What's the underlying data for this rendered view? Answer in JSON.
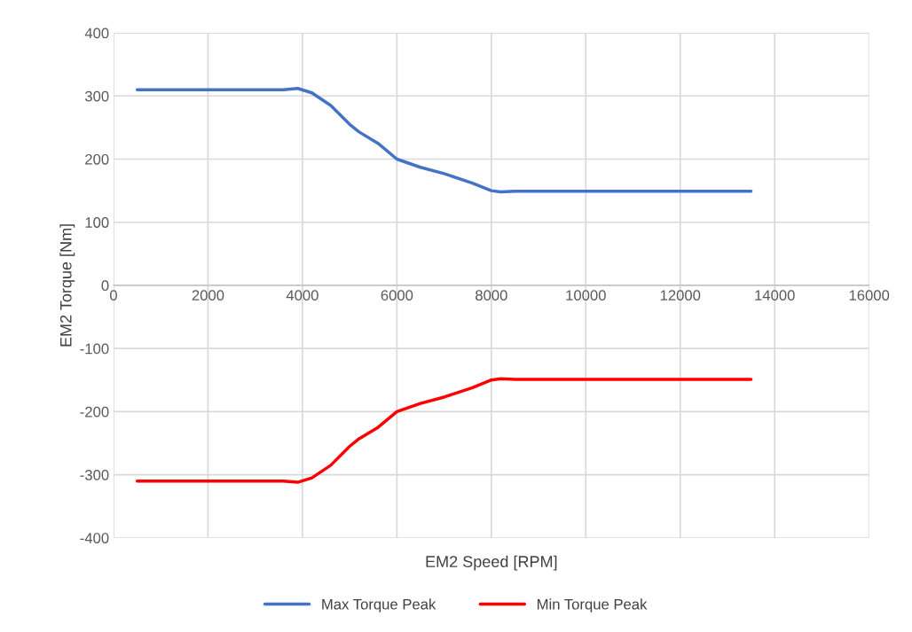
{
  "chart_data": {
    "type": "line",
    "xlabel": "EM2 Speed [RPM]",
    "ylabel": "EM2 Torque [Nm]",
    "x": [
      500,
      3600,
      3900,
      4200,
      4600,
      5000,
      5200,
      5600,
      6000,
      6500,
      7000,
      7600,
      8000,
      8200,
      8500,
      13500
    ],
    "series": [
      {
        "name": "Max Torque Peak",
        "color": "#4472c4",
        "values": [
          310,
          310,
          312,
          305,
          285,
          255,
          243,
          225,
          200,
          187,
          177,
          162,
          150,
          148,
          149,
          149
        ]
      },
      {
        "name": "Min Torque Peak",
        "color": "#ff0000",
        "values": [
          -310,
          -310,
          -312,
          -305,
          -285,
          -255,
          -243,
          -225,
          -200,
          -187,
          -177,
          -162,
          -150,
          -148,
          -149,
          -149
        ]
      }
    ],
    "xlim": [
      0,
      16000
    ],
    "xticks": [
      0,
      2000,
      4000,
      6000,
      8000,
      10000,
      12000,
      14000,
      16000
    ],
    "ylim": [
      -400,
      400
    ],
    "yticks": [
      -400,
      -300,
      -200,
      -100,
      0,
      100,
      200,
      300,
      400
    ],
    "grid": true,
    "legend": "bottom",
    "marker": "none",
    "line_style": "solid"
  }
}
